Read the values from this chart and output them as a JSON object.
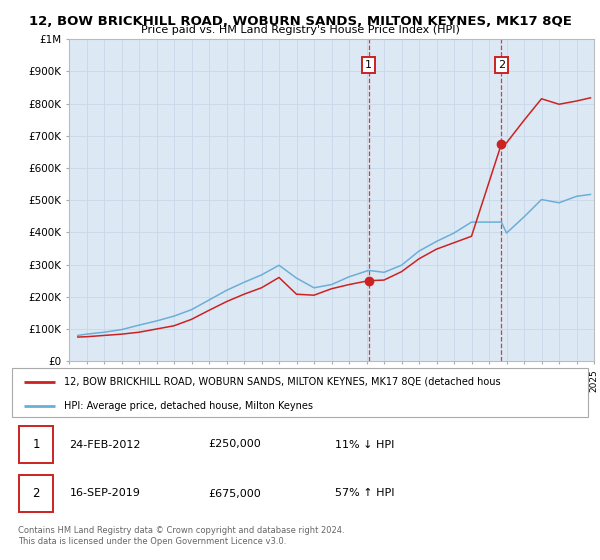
{
  "title": "12, BOW BRICKHILL ROAD, WOBURN SANDS, MILTON KEYNES, MK17 8QE",
  "subtitle": "Price paid vs. HM Land Registry's House Price Index (HPI)",
  "ylim": [
    0,
    1000000
  ],
  "xlim_start": 1995,
  "xlim_end": 2025,
  "background_color": "#ffffff",
  "plot_bg_color": "#dce9f5",
  "grid_color": "#c8d8e8",
  "hpi_color": "#6baed6",
  "price_color": "#cc2222",
  "sale1_date": 2012.12,
  "sale1_price": 250000,
  "sale1_label": "1",
  "sale1_hpi_pct": "11% ↓ HPI",
  "sale1_date_str": "24-FEB-2012",
  "sale2_date": 2019.71,
  "sale2_price": 675000,
  "sale2_label": "2",
  "sale2_hpi_pct": "57% ↑ HPI",
  "sale2_date_str": "16-SEP-2019",
  "legend_line1": "12, BOW BRICKHILL ROAD, WOBURN SANDS, MILTON KEYNES, MK17 8QE (detached hous",
  "legend_line2": "HPI: Average price, detached house, Milton Keynes",
  "footer1": "Contains HM Land Registry data © Crown copyright and database right 2024.",
  "footer2": "This data is licensed under the Open Government Licence v3.0.",
  "yticks": [
    0,
    100000,
    200000,
    300000,
    400000,
    500000,
    600000,
    700000,
    800000,
    900000,
    1000000
  ],
  "ytick_labels": [
    "£0",
    "£100K",
    "£200K",
    "£300K",
    "£400K",
    "£500K",
    "£600K",
    "£700K",
    "£800K",
    "£900K",
    "£1M"
  ],
  "years_price": [
    1995.5,
    1996,
    1997,
    1998,
    1999,
    2000,
    2001,
    2002,
    2003,
    2004,
    2005,
    2006,
    2007,
    2008,
    2009,
    2010,
    2011,
    2012.12,
    2013,
    2014,
    2015,
    2016,
    2017,
    2018,
    2019.71,
    2020,
    2021,
    2022,
    2023,
    2024,
    2024.8
  ],
  "price_vals": [
    75000,
    76000,
    80000,
    84000,
    90000,
    100000,
    110000,
    130000,
    158000,
    185000,
    208000,
    228000,
    260000,
    208000,
    205000,
    225000,
    238000,
    250000,
    252000,
    278000,
    318000,
    348000,
    368000,
    388000,
    675000,
    678000,
    748000,
    815000,
    798000,
    808000,
    818000
  ],
  "years_hpi": [
    1995.5,
    1996,
    1997,
    1998,
    1999,
    2000,
    2001,
    2002,
    2003,
    2004,
    2005,
    2006,
    2007,
    2008,
    2009,
    2010,
    2011,
    2012.12,
    2013,
    2014,
    2015,
    2016,
    2017,
    2018,
    2019.71,
    2020,
    2021,
    2022,
    2023,
    2024,
    2024.8
  ],
  "hpi_vals": [
    80000,
    84000,
    90000,
    98000,
    112000,
    125000,
    140000,
    160000,
    190000,
    220000,
    245000,
    268000,
    298000,
    258000,
    228000,
    238000,
    262000,
    282000,
    276000,
    298000,
    342000,
    372000,
    398000,
    432000,
    432000,
    398000,
    448000,
    502000,
    492000,
    512000,
    518000
  ]
}
